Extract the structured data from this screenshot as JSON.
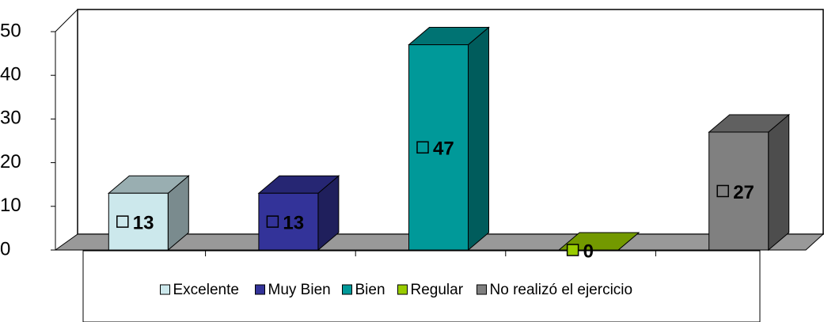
{
  "chart_data": {
    "type": "bar3d",
    "series": [
      {
        "name": "Excelente",
        "color": "#cce8ec",
        "values": [
          13
        ]
      },
      {
        "name": "Muy Bien",
        "color": "#333399",
        "values": [
          13
        ]
      },
      {
        "name": "Bien",
        "color": "#009999",
        "values": [
          47
        ]
      },
      {
        "name": "Regular",
        "color": "#99cc00",
        "values": [
          0
        ]
      },
      {
        "name": "No realizó el ejercicio",
        "color": "#808080",
        "values": [
          27
        ]
      }
    ],
    "ylim": [
      0,
      50
    ],
    "yticks": [
      0,
      10,
      20,
      30,
      40,
      50
    ],
    "grid": false,
    "legend": "bottom"
  }
}
